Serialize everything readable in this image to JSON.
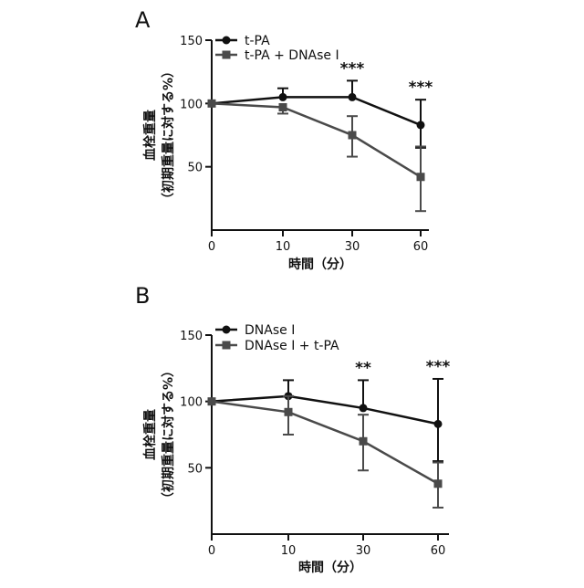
{
  "chart_data": [
    {
      "panel": "A",
      "type": "line",
      "categories": [
        "0",
        "10",
        "30",
        "60"
      ],
      "ylim": [
        0,
        150
      ],
      "yticks": [
        50,
        100,
        150
      ],
      "xlabel": "時間（分）",
      "ylabel_line1": "血栓重量",
      "ylabel_line2": "（初期重量に対する%）",
      "legend_position": "top-left",
      "series": [
        {
          "name": "t-PA",
          "marker": "circle",
          "color": "#111111",
          "values": [
            100,
            105,
            105,
            83
          ],
          "err_upper": [
            0,
            7,
            13,
            20
          ],
          "err_lower": [
            0,
            0,
            0,
            18
          ]
        },
        {
          "name": "t-PA + DNAse I",
          "marker": "square",
          "color": "#4a4a4a",
          "values": [
            100,
            97,
            75,
            42
          ],
          "err_upper": [
            0,
            0,
            15,
            24
          ],
          "err_lower": [
            0,
            5,
            17,
            27
          ]
        }
      ],
      "significance": [
        {
          "category": "30",
          "label": "***"
        },
        {
          "category": "60",
          "label": "***"
        }
      ]
    },
    {
      "panel": "B",
      "type": "line",
      "categories": [
        "0",
        "10",
        "30",
        "60"
      ],
      "ylim": [
        0,
        150
      ],
      "yticks": [
        50,
        100,
        150
      ],
      "xlabel": "時間（分）",
      "ylabel_line1": "血栓重量",
      "ylabel_line2": "（初期重量に対する%）",
      "legend_position": "top-left",
      "series": [
        {
          "name": "DNAse I",
          "marker": "circle",
          "color": "#111111",
          "values": [
            100,
            104,
            95,
            83
          ],
          "err_upper": [
            0,
            12,
            21,
            34
          ],
          "err_lower": [
            0,
            0,
            0,
            28
          ]
        },
        {
          "name": "DNAse I + t-PA",
          "marker": "square",
          "color": "#4a4a4a",
          "values": [
            100,
            92,
            70,
            38
          ],
          "err_upper": [
            0,
            12,
            20,
            16
          ],
          "err_lower": [
            0,
            17,
            22,
            18
          ]
        }
      ],
      "significance": [
        {
          "category": "30",
          "label": "**"
        },
        {
          "category": "60",
          "label": "***"
        }
      ]
    }
  ]
}
